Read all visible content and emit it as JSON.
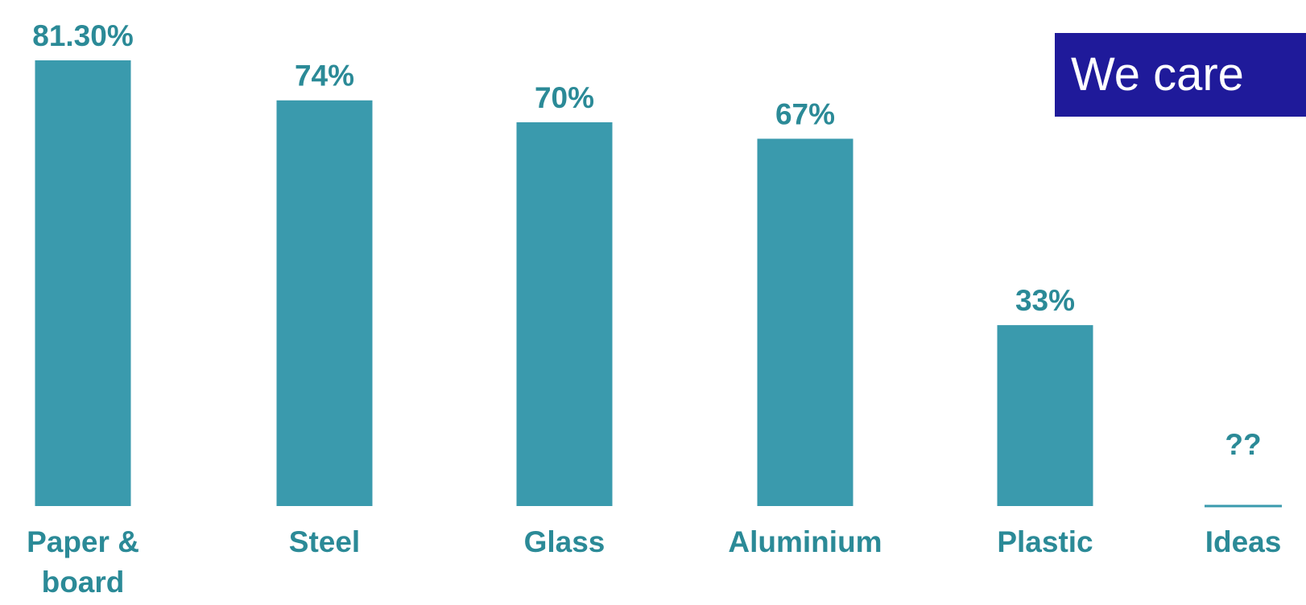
{
  "badge": {
    "text": "We care",
    "bg_color": "#1f1a9a",
    "text_color": "#ffffff"
  },
  "colors": {
    "bar": "#3a9aad",
    "text": "#2b8a97",
    "baseline": "#3a9aad"
  },
  "chart_data": {
    "type": "bar",
    "categories": [
      [
        "Paper &",
        "board"
      ],
      [
        "Steel"
      ],
      [
        "Glass"
      ],
      [
        "Aluminium"
      ],
      [
        "Plastic"
      ],
      [
        "Ideas"
      ]
    ],
    "values": [
      81.3,
      74,
      70,
      67,
      33,
      null
    ],
    "value_labels": [
      "81.30%",
      "74%",
      "70%",
      "67%",
      "33%",
      "??"
    ],
    "ylim": [
      0,
      100
    ],
    "grid": false,
    "legend": "none"
  }
}
